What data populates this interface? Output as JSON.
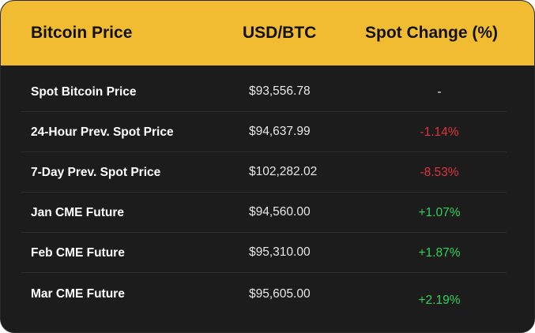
{
  "table": {
    "headers": {
      "name": "Bitcoin Price",
      "price": "USD/BTC",
      "change": "Spot Change (%)"
    },
    "rows": [
      {
        "name": "Spot Bitcoin Price",
        "price": "$93,556.78",
        "change": "-",
        "trend": "neutral"
      },
      {
        "name": "24-Hour Prev. Spot Price",
        "price": "$94,637.99",
        "change": "-1.14%",
        "trend": "negative"
      },
      {
        "name": "7-Day Prev. Spot Price",
        "price": "$102,282.02",
        "change": "-8.53%",
        "trend": "negative"
      },
      {
        "name": "Jan CME Future",
        "price": "$94,560.00",
        "change": "+1.07%",
        "trend": "positive"
      },
      {
        "name": "Feb CME Future",
        "price": "$95,310.00",
        "change": "+1.87%",
        "trend": "positive"
      },
      {
        "name": "Mar CME Future",
        "price": "$95,605.00",
        "change": "+2.19%",
        "trend": "positive"
      }
    ]
  },
  "colors": {
    "header_bg": "#f2bc32",
    "card_bg": "#1c1c1c",
    "negative": "#e0333c",
    "positive": "#2fd15a"
  }
}
